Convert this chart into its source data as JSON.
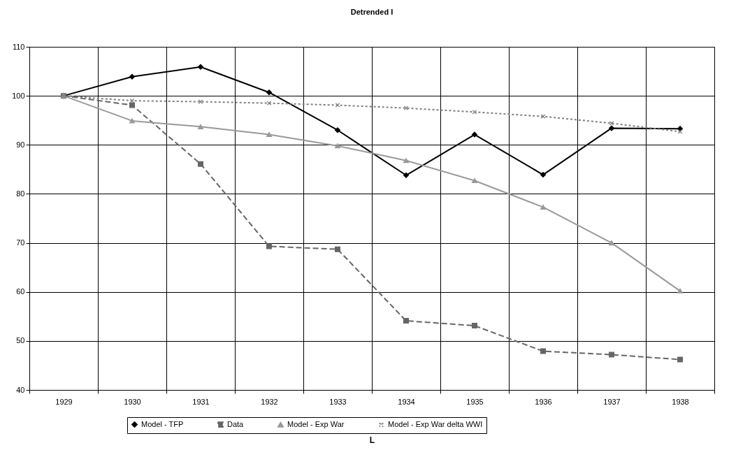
{
  "chart_data": {
    "type": "line",
    "title": "Detrended I",
    "xlabel": "L",
    "categories": [
      "1929",
      "1930",
      "1931",
      "1932",
      "1933",
      "1934",
      "1935",
      "1936",
      "1937",
      "1938"
    ],
    "series": [
      {
        "name": "Model - TFP",
        "color": "#000000",
        "marker": "diamond",
        "line_style": "solid",
        "values": [
          100,
          103.9,
          105.9,
          100.7,
          93,
          83.8,
          92.1,
          83.9,
          93.4,
          93.3
        ]
      },
      {
        "name": "Data",
        "color": "#666666",
        "marker": "square",
        "line_style": "dashed",
        "values": [
          100,
          98.1,
          86.1,
          69.3,
          68.7,
          54.1,
          53.1,
          47.9,
          47.2,
          46.2
        ]
      },
      {
        "name": "Model - Exp War",
        "color": "#999999",
        "marker": "triangle",
        "line_style": "solid",
        "values": [
          100,
          94.9,
          93.7,
          92.1,
          89.8,
          86.8,
          82.7,
          77.3,
          70.0,
          60.2
        ]
      },
      {
        "name": "Model - Exp War delta WWI",
        "color": "#808080",
        "marker": "cross",
        "line_style": "dotted",
        "values": [
          100,
          99,
          98.8,
          98.5,
          98.1,
          97.5,
          96.7,
          95.8,
          94.4,
          92.7
        ]
      }
    ],
    "ylim": [
      40,
      110
    ],
    "yticks": [
      40,
      50,
      60,
      70,
      80,
      90,
      100,
      110
    ],
    "grid": true,
    "legend": "bottom"
  }
}
